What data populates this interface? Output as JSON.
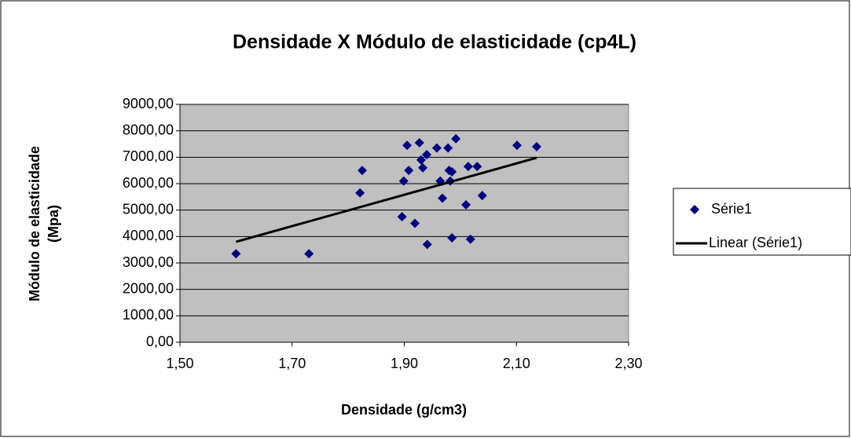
{
  "chart_data": {
    "type": "scatter",
    "title": "Densidade X Módulo de elasticidade (cp4L)",
    "x_label": "Densidade (g/cm3)",
    "y_label": [
      "Módulo de elasticidade",
      "(Mpa)"
    ],
    "xlim": [
      1.5,
      2.3
    ],
    "xticks": [
      {
        "value": 1.5,
        "label": "1,50"
      },
      {
        "value": 1.7,
        "label": "1,70"
      },
      {
        "value": 1.9,
        "label": "1,90"
      },
      {
        "value": 2.1,
        "label": "2,10"
      },
      {
        "value": 2.3,
        "label": "2,30"
      }
    ],
    "ylim": [
      0,
      9000
    ],
    "yticks": [
      {
        "value": 0,
        "label": "0,00"
      },
      {
        "value": 1000,
        "label": "1000,00"
      },
      {
        "value": 2000,
        "label": "2000,00"
      },
      {
        "value": 3000,
        "label": "3000,00"
      },
      {
        "value": 4000,
        "label": "4000,00"
      },
      {
        "value": 5000,
        "label": "5000,00"
      },
      {
        "value": 6000,
        "label": "6000,00"
      },
      {
        "value": 7000,
        "label": "7000,00"
      },
      {
        "value": 8000,
        "label": "8000,00"
      },
      {
        "value": 9000,
        "label": "9000,00"
      }
    ],
    "grid": true,
    "plot_background": "#c0c0c0",
    "legend": "right",
    "series": [
      {
        "name": "Série1",
        "color": "#000080",
        "marker": "diamond",
        "x": [
          1.6,
          1.73,
          1.825,
          1.821,
          1.896,
          1.899,
          1.905,
          1.908,
          1.919,
          1.927,
          1.93,
          1.933,
          1.94,
          1.941,
          1.958,
          1.964,
          1.968,
          1.978,
          1.98,
          1.982,
          1.985,
          1.985,
          1.992,
          2.01,
          2.014,
          2.018,
          2.03,
          2.039,
          2.101,
          2.136
        ],
        "values": [
          3350,
          3350,
          6500,
          5650,
          4750,
          6100,
          7450,
          6500,
          4500,
          7550,
          6900,
          6600,
          7100,
          3700,
          7350,
          6100,
          5450,
          7350,
          6500,
          6100,
          3950,
          6450,
          7700,
          5200,
          6650,
          3900,
          6650,
          5550,
          7450,
          7400
        ]
      },
      {
        "name": "Linear (Série1)",
        "color": "#000000",
        "line": true,
        "x": [
          1.6,
          2.136
        ],
        "values": [
          3800,
          6980
        ]
      }
    ]
  }
}
